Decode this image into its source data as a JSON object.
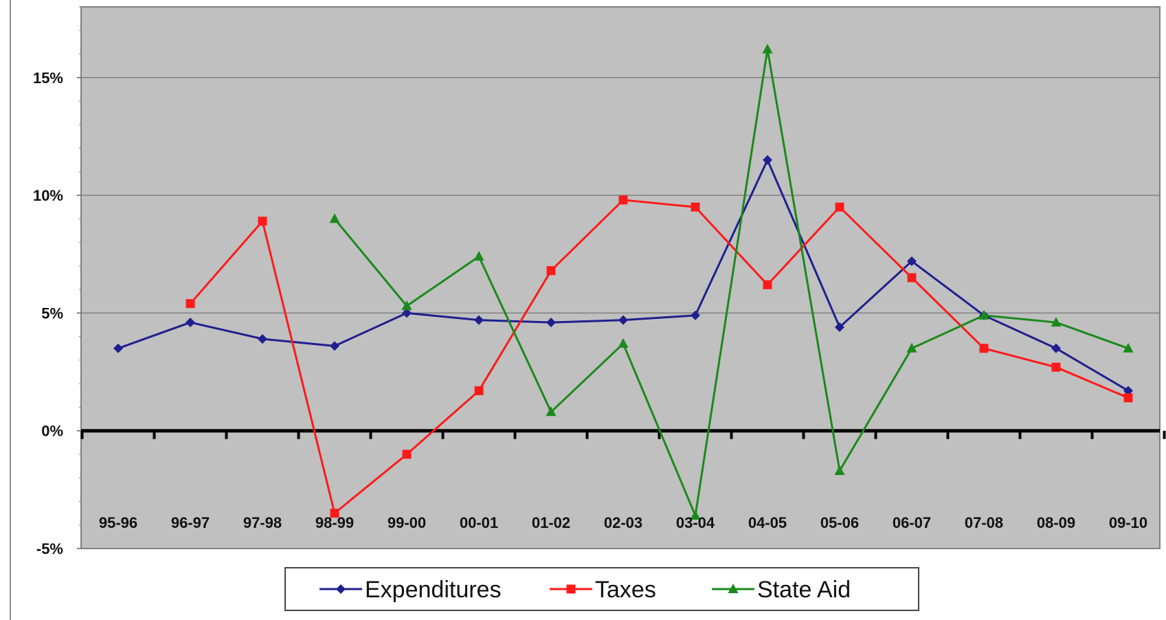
{
  "chart_data": {
    "type": "line",
    "categories": [
      "95-96",
      "96-97",
      "97-98",
      "98-99",
      "99-00",
      "00-01",
      "01-02",
      "02-03",
      "03-04",
      "04-05",
      "05-06",
      "06-07",
      "07-08",
      "08-09",
      "09-10"
    ],
    "y_tick_labels": [
      "-5%",
      "0%",
      "5%",
      "10%",
      "15%"
    ],
    "ylim": [
      -5,
      18
    ],
    "y_unit": "%",
    "grid": "horizontal",
    "legend_position": "bottom",
    "series": [
      {
        "name": "Expenditures",
        "color": "#1f1f8f",
        "marker": "diamond",
        "values": [
          3.5,
          4.6,
          3.9,
          3.6,
          5.0,
          4.7,
          4.6,
          4.7,
          4.9,
          11.5,
          4.4,
          7.2,
          4.9,
          3.5,
          1.7
        ]
      },
      {
        "name": "Taxes",
        "color": "#ff1a1a",
        "marker": "square",
        "values": [
          null,
          5.4,
          8.9,
          -3.5,
          -1.0,
          1.7,
          6.8,
          9.8,
          9.5,
          6.2,
          9.5,
          6.5,
          3.5,
          2.7,
          1.4
        ]
      },
      {
        "name": "State Aid",
        "color": "#1a8a1a",
        "marker": "triangle",
        "values": [
          null,
          null,
          null,
          9.0,
          5.3,
          7.4,
          0.8,
          3.7,
          -3.6,
          16.2,
          -1.7,
          3.5,
          4.9,
          4.6,
          3.5
        ]
      }
    ]
  }
}
